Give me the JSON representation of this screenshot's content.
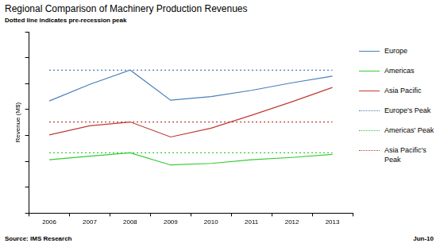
{
  "chart_data": {
    "type": "line",
    "title": "Regional Comparison of Machinery Production Revenues",
    "subtitle": "Dotted line indicates pre-recession peak",
    "y_label": "Revenue (M$)",
    "annotations": [
      "Source: IMS Research",
      "Jun-10"
    ],
    "categories": [
      "2006",
      "2007",
      "2008",
      "2009",
      "2010",
      "2011",
      "2012",
      "2013"
    ],
    "series": [
      {
        "name": "Europe",
        "color": "#4a7ebb",
        "line_style": "solid",
        "values": [
          4.33,
          4.97,
          5.52,
          4.36,
          4.5,
          4.74,
          5.03,
          5.29
        ]
      },
      {
        "name": "Americas",
        "color": "#33cc33",
        "line_style": "solid",
        "values": [
          2.06,
          2.2,
          2.33,
          1.86,
          1.92,
          2.06,
          2.15,
          2.27
        ]
      },
      {
        "name": "Asia Pacific",
        "color": "#be3a34",
        "line_style": "solid",
        "values": [
          3.02,
          3.37,
          3.52,
          2.94,
          3.28,
          3.78,
          4.3,
          4.85
        ]
      },
      {
        "name": "Europe's Peak",
        "color": "#4a7ebb",
        "line_style": "dotted",
        "values": [
          5.52,
          5.52,
          5.52,
          5.52,
          5.52,
          5.52,
          5.52,
          5.52
        ]
      },
      {
        "name": "Americas' Peak",
        "color": "#33cc33",
        "line_style": "dotted",
        "values": [
          2.33,
          2.33,
          2.33,
          2.33,
          2.33,
          2.33,
          2.33,
          2.33
        ]
      },
      {
        "name": "Asia Pacific's Peak",
        "color": "#be3a34",
        "line_style": "dotted",
        "values": [
          3.52,
          3.52,
          3.52,
          3.52,
          3.52,
          3.52,
          3.52,
          3.52
        ]
      }
    ],
    "ylim": [
      0,
      7
    ],
    "yticks": [
      0,
      1,
      2,
      3,
      4,
      5,
      6,
      7
    ],
    "grid": false,
    "legend": "right",
    "tick_labels": "x"
  }
}
